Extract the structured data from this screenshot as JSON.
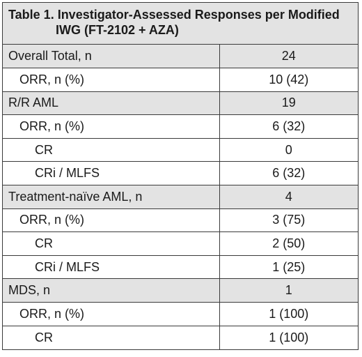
{
  "table": {
    "title_line1": "Table 1. Investigator-Assessed Responses per Modified",
    "title_line2": "IWG (FT-2102 + AZA)",
    "rows": [
      {
        "label": "Overall Total, n",
        "value": "24"
      },
      {
        "label": "ORR, n (%)",
        "value": "10 (42)"
      },
      {
        "label": "R/R AML",
        "value": "19"
      },
      {
        "label": "ORR, n (%)",
        "value": "6 (32)"
      },
      {
        "label": "CR",
        "value": "0"
      },
      {
        "label": "CRi / MLFS",
        "value": "6 (32)"
      },
      {
        "label": "Treatment-naïve AML, n",
        "value": "4"
      },
      {
        "label": "ORR, n (%)",
        "value": "3 (75)"
      },
      {
        "label": "CR",
        "value": "2 (50)"
      },
      {
        "label": "CRi / MLFS",
        "value": "1 (25)"
      },
      {
        "label": "MDS, n",
        "value": "1"
      },
      {
        "label": "ORR, n (%)",
        "value": "1 (100)"
      },
      {
        "label": "CR",
        "value": "1 (100)"
      }
    ]
  },
  "colors": {
    "group_background": "#e3e3e3",
    "border": "#3a3a3a"
  }
}
